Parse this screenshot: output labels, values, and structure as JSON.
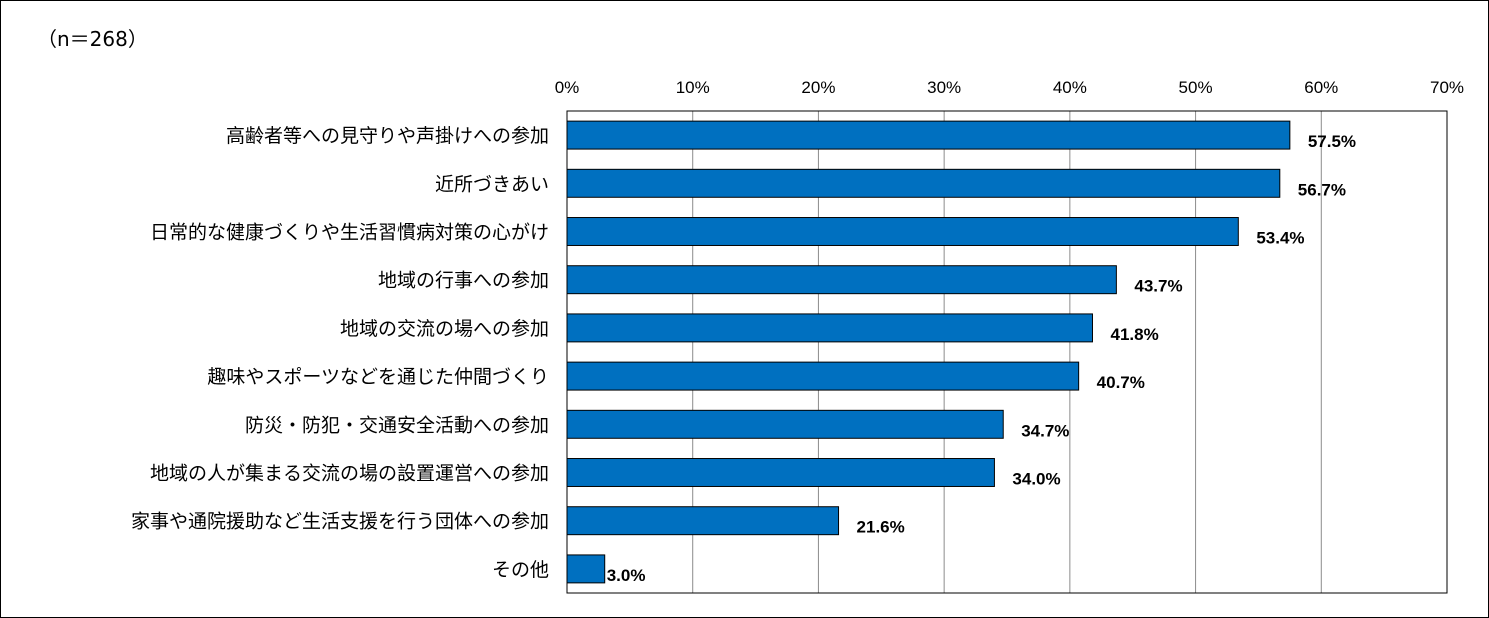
{
  "sample_note": "（n＝268）",
  "chart_data": {
    "type": "bar",
    "orientation": "horizontal",
    "title": "",
    "xlabel": "",
    "ylabel": "",
    "xlim": [
      0,
      70
    ],
    "x_ticks": [
      "0%",
      "10%",
      "20%",
      "30%",
      "40%",
      "50%",
      "60%",
      "70%"
    ],
    "x_tick_values": [
      0,
      10,
      20,
      30,
      40,
      50,
      60,
      70
    ],
    "grid": true,
    "legend": "none",
    "bar_color": "#0070c0",
    "categories": [
      "高齢者等への見守りや声掛けへの参加",
      "近所づきあい",
      "日常的な健康づくりや生活習慣病対策の心がけ",
      "地域の行事への参加",
      "地域の交流の場への参加",
      "趣味やスポーツなどを通じた仲間づくり",
      "防災・防犯・交通安全活動への参加",
      "地域の人が集まる交流の場の設置運営への参加",
      "家事や通院援助など生活支援を行う団体への参加",
      "その他"
    ],
    "values": [
      57.5,
      56.7,
      53.4,
      43.7,
      41.8,
      40.7,
      34.7,
      34.0,
      21.6,
      3.0
    ],
    "data_labels": [
      "57.5%",
      "56.7%",
      "53.4%",
      "43.7%",
      "41.8%",
      "40.7%",
      "34.7%",
      "34.0%",
      "21.6%",
      "3.0%"
    ]
  }
}
